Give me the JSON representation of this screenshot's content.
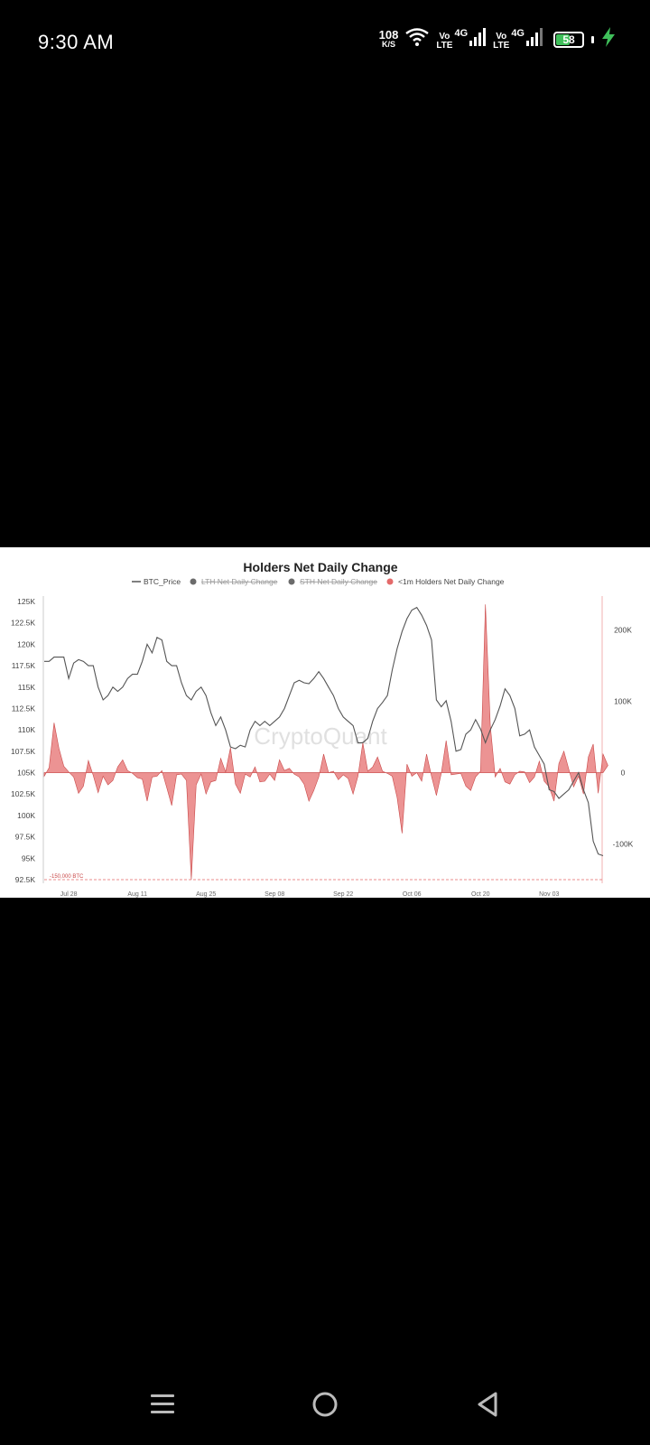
{
  "status_bar": {
    "time": "9:30 AM",
    "net_speed": "108",
    "net_speed_unit": "K/S",
    "sim1_volte_top": "Vo",
    "sim1_volte_bottom": "LTE",
    "sim1_tech": "4G",
    "sim2_volte_top": "Vo",
    "sim2_volte_bottom": "LTE",
    "sim2_tech": "4G",
    "battery_level": "58",
    "battery_fraction": 0.58,
    "colors": {
      "battery_fill": "#3fbf5a",
      "charging": "#3fbf5a"
    },
    "icons": [
      "wifi-icon",
      "signal-icon",
      "battery-icon",
      "charging-bolt-icon"
    ]
  },
  "chart_data": {
    "type": "line",
    "title": "Holders Net Daily Change",
    "watermark": "CryptoQuant",
    "legend": [
      {
        "label": "BTC_Price",
        "style": "line",
        "color": "#555555",
        "disabled": false
      },
      {
        "label": "LTH Net Daily Change",
        "style": "dot",
        "color": "#6b6b6b",
        "disabled": true
      },
      {
        "label": "STH Net Daily Change",
        "style": "dot",
        "color": "#6b6b6b",
        "disabled": true
      },
      {
        "label": "<1m Holders Net Daily Change",
        "style": "dot",
        "color": "#e46a6a",
        "disabled": false
      }
    ],
    "legend_position": "top",
    "x_ticks": [
      "Jul 28",
      "Aug 11",
      "Aug 25",
      "Sep 08",
      "Sep 22",
      "Oct 06",
      "Oct 20",
      "Nov 03"
    ],
    "x_tick_index": [
      5,
      19,
      33,
      47,
      61,
      75,
      89,
      103
    ],
    "y_left": {
      "ticks": [
        "125K",
        "122.5K",
        "120K",
        "117.5K",
        "115K",
        "112.5K",
        "110K",
        "107.5K",
        "105K",
        "102.5K",
        "100K",
        "97.5K",
        "95K",
        "92.5K"
      ],
      "min": 92500,
      "max": 125000
    },
    "y_right": {
      "ticks": [
        "200K",
        "100K",
        "0",
        "-100K"
      ],
      "tick_values": [
        200000,
        100000,
        0,
        -100000
      ],
      "min": -150000,
      "max": 240000
    },
    "reference_line": {
      "label": "-150,000 BTC",
      "value": -150000,
      "axis": "right",
      "color": "#e46a6a"
    },
    "series": [
      {
        "name": "BTC_Price",
        "axis": "left",
        "color": "#555555",
        "values": [
          118000,
          118000,
          118500,
          118500,
          118500,
          116000,
          117800,
          118200,
          118000,
          117500,
          117500,
          115000,
          113500,
          114000,
          115000,
          114500,
          115000,
          116000,
          116500,
          116500,
          118000,
          120000,
          119000,
          120800,
          120500,
          118000,
          117500,
          117500,
          115500,
          114000,
          113500,
          114500,
          115000,
          114000,
          112000,
          110500,
          111500,
          110000,
          108000,
          107800,
          108200,
          108000,
          110000,
          111000,
          110500,
          111000,
          110500,
          111000,
          111500,
          112500,
          114000,
          115500,
          115800,
          115500,
          115400,
          116000,
          116800,
          116000,
          115000,
          114000,
          112500,
          111500,
          111000,
          110500,
          108500,
          108500,
          109000,
          111000,
          112500,
          113200,
          114000,
          117000,
          119500,
          121500,
          123000,
          124000,
          124300,
          123400,
          122200,
          120500,
          113500,
          112700,
          113400,
          111000,
          107500,
          107700,
          109500,
          110000,
          111200,
          110100,
          108500,
          110000,
          111200,
          112800,
          114800,
          114000,
          112500,
          109300,
          109500,
          110000,
          108000,
          107000,
          106000,
          103000,
          102800,
          102000,
          102500,
          103000,
          104000,
          105000,
          103000,
          101500,
          97000,
          95500,
          95300
        ]
      },
      {
        "name": "<1m Holders Net Daily Change",
        "axis": "right",
        "color": "#e46a6a",
        "values": [
          -5000,
          7000,
          70000,
          34000,
          9000,
          1000,
          -6000,
          -29000,
          -19000,
          17000,
          -4000,
          -28000,
          -5000,
          -17000,
          -11000,
          8000,
          18000,
          3000,
          -1000,
          -7000,
          -9000,
          -40000,
          -6000,
          -5000,
          3000,
          -21000,
          -46000,
          -3000,
          -2000,
          -11000,
          -150000,
          -17000,
          -2000,
          -30000,
          -13000,
          -11000,
          20000,
          1000,
          35000,
          -16000,
          -29000,
          -2000,
          -6000,
          8000,
          -13000,
          -12000,
          -2000,
          -11000,
          18000,
          3000,
          6000,
          -2000,
          -6000,
          -16000,
          -40000,
          -25000,
          -6000,
          26000,
          0,
          2000,
          -10000,
          -3000,
          -8000,
          -30000,
          -5000,
          42000,
          2000,
          8000,
          22000,
          2000,
          -1000,
          -5000,
          -35000,
          -85000,
          12000,
          -5000,
          0,
          -12000,
          26000,
          -5000,
          -32000,
          -1000,
          45000,
          -3000,
          -2000,
          -1000,
          -19000,
          -25000,
          -6000,
          2000,
          236000,
          66000,
          -6000,
          6000,
          -13000,
          -16000,
          -3000,
          2000,
          1000,
          -14000,
          -6000,
          16000,
          -12000,
          -20000,
          -40000,
          13000,
          30000,
          5000,
          -20000,
          -5000,
          -30000,
          22000,
          40000,
          -29000,
          26000,
          10000
        ]
      }
    ]
  },
  "nav_bar": {
    "icons": [
      "menu-icon",
      "home-icon",
      "back-icon"
    ]
  }
}
